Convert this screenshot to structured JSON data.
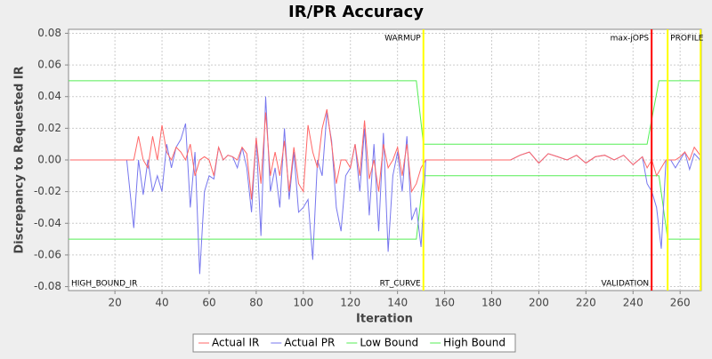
{
  "chart_data": {
    "type": "line",
    "title": "IR/PR Accuracy",
    "x_label": "Iteration",
    "y_label": "Discrepancy to Requested IR",
    "xlim": [
      0.3,
      269
    ],
    "ylim": [
      -0.0825,
      0.0825
    ],
    "xticks": [
      20,
      40,
      60,
      80,
      100,
      120,
      140,
      160,
      180,
      200,
      220,
      240,
      260
    ],
    "yticks": [
      -0.08,
      -0.06,
      -0.04,
      -0.02,
      {
        "value": 0,
        "label": "0.00"
      },
      0.02,
      0.04,
      0.06,
      0.08
    ],
    "grid": true,
    "legend": "bottom",
    "markers": [
      {
        "x": 151,
        "color": "#ffff00"
      },
      {
        "x": 247.9,
        "color": "#ff0000"
      },
      {
        "x": 254.7,
        "color": "#ffff00"
      },
      {
        "x": 268.7,
        "color": "#ffff00"
      }
    ],
    "annotations": [
      {
        "text": "WARMUP",
        "x": 151,
        "position": "top",
        "anchor": "end"
      },
      {
        "text": "max-jOPS",
        "x": 247.9,
        "position": "top",
        "anchor": "end"
      },
      {
        "text": "PROFILE",
        "x": 254.7,
        "position": "top",
        "anchor": "start"
      },
      {
        "text": "HIGH_BOUND_IR",
        "x": 0.3,
        "position": "bottom",
        "anchor": "start"
      },
      {
        "text": "RT_CURVE",
        "x": 151,
        "position": "bottom",
        "anchor": "end"
      },
      {
        "text": "VALIDATION",
        "x": 247.9,
        "position": "bottom",
        "anchor": "end"
      }
    ],
    "series": [
      {
        "name": "Actual IR",
        "color": "#ff6666",
        "x": [
          1,
          25,
          28,
          30,
          32,
          34,
          36,
          38,
          40,
          42,
          44,
          46,
          48,
          50,
          52,
          54,
          56,
          58,
          60,
          62,
          64,
          66,
          68,
          70,
          72,
          74,
          76,
          78,
          80,
          82,
          84,
          86,
          88,
          90,
          92,
          94,
          96,
          98,
          100,
          102,
          104,
          106,
          108,
          110,
          112,
          114,
          116,
          118,
          120,
          122,
          124,
          126,
          128,
          130,
          132,
          134,
          136,
          138,
          140,
          142,
          144,
          146,
          148,
          150,
          152,
          188,
          192,
          196,
          200,
          204,
          208,
          212,
          216,
          220,
          224,
          228,
          232,
          236,
          240,
          244,
          246,
          248,
          250,
          252,
          254,
          256,
          258,
          260,
          262,
          264,
          266,
          268.5
        ],
        "values": [
          0,
          0,
          0,
          0.015,
          0,
          -0.005,
          0.015,
          0,
          0.022,
          0.005,
          0,
          0.008,
          0.005,
          0,
          0.01,
          -0.01,
          0,
          0.002,
          0,
          -0.01,
          0.008,
          0,
          0.003,
          0.002,
          0,
          0.008,
          0.004,
          -0.025,
          0.014,
          -0.015,
          0.03,
          -0.01,
          0.005,
          -0.01,
          0.012,
          -0.02,
          0.008,
          -0.015,
          -0.02,
          0.022,
          0.005,
          -0.005,
          0.02,
          0.032,
          0.01,
          -0.015,
          0,
          0,
          -0.005,
          0.01,
          -0.01,
          0.025,
          -0.012,
          0,
          -0.02,
          0.01,
          -0.005,
          0,
          0.008,
          -0.01,
          0.01,
          -0.02,
          -0.015,
          -0.005,
          0,
          0,
          0.003,
          0.005,
          -0.002,
          0.004,
          0.002,
          0,
          0.003,
          -0.002,
          0.002,
          0.003,
          0,
          0.003,
          -0.003,
          0.002,
          -0.005,
          0,
          -0.01,
          -0.005,
          0,
          0,
          0,
          0.002,
          0.005,
          0,
          0.008,
          0.003
        ]
      },
      {
        "name": "Actual PR",
        "color": "#7777ee",
        "x": [
          1,
          25,
          28,
          30,
          32,
          34,
          36,
          38,
          40,
          42,
          44,
          46,
          48,
          50,
          52,
          54,
          56,
          58,
          60,
          62,
          64,
          66,
          68,
          70,
          72,
          74,
          76,
          78,
          80,
          82,
          84,
          86,
          88,
          90,
          92,
          94,
          96,
          98,
          100,
          102,
          104,
          106,
          108,
          110,
          112,
          114,
          116,
          118,
          120,
          122,
          124,
          126,
          128,
          130,
          132,
          134,
          136,
          138,
          140,
          142,
          144,
          146,
          148,
          150,
          152,
          188,
          192,
          196,
          200,
          204,
          208,
          212,
          216,
          220,
          224,
          228,
          232,
          236,
          240,
          244,
          246,
          248,
          250,
          252,
          254,
          256,
          258,
          260,
          262,
          264,
          266,
          268.5
        ],
        "values": [
          0,
          0,
          -0.043,
          0,
          -0.022,
          0,
          -0.02,
          -0.01,
          -0.02,
          0.01,
          -0.005,
          0.008,
          0.013,
          0.023,
          -0.03,
          0.005,
          -0.072,
          -0.02,
          -0.01,
          -0.012,
          0.008,
          0,
          0.003,
          0.002,
          -0.005,
          0.008,
          -0.005,
          -0.033,
          0.014,
          -0.048,
          0.04,
          -0.02,
          -0.005,
          -0.03,
          0.02,
          -0.025,
          0.005,
          -0.033,
          -0.03,
          -0.025,
          -0.063,
          0,
          -0.01,
          0.03,
          0.012,
          -0.03,
          -0.045,
          -0.01,
          -0.005,
          0.01,
          -0.02,
          0.02,
          -0.035,
          0.01,
          -0.045,
          0.017,
          -0.058,
          -0.01,
          0.005,
          -0.02,
          0.015,
          -0.038,
          -0.03,
          -0.055,
          0,
          0,
          0.003,
          0.005,
          -0.002,
          0.004,
          0.002,
          0,
          0.003,
          -0.002,
          0.002,
          0.003,
          0,
          0.003,
          -0.003,
          0.002,
          -0.015,
          -0.02,
          -0.03,
          -0.056,
          0,
          0,
          -0.005,
          0,
          0.005,
          -0.006,
          0.004,
          0
        ]
      },
      {
        "name": "Low Bound",
        "color": "#55ee55",
        "x": [
          0.3,
          148,
          151,
          246,
          251,
          254.7,
          269
        ],
        "values": [
          -0.05,
          -0.05,
          -0.01,
          -0.01,
          -0.01,
          -0.05,
          -0.05
        ]
      },
      {
        "name": "High Bound",
        "color": "#55ee55",
        "x": [
          0.3,
          148,
          151,
          246,
          251,
          254.7,
          269
        ],
        "values": [
          0.05,
          0.05,
          0.01,
          0.01,
          0.05,
          0.05,
          0.05
        ]
      }
    ]
  }
}
